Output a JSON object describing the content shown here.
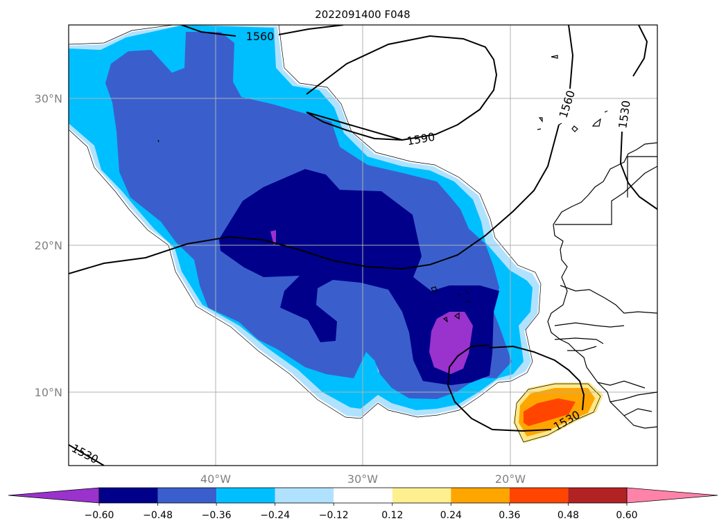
{
  "title": "2022091400 F048",
  "map": {
    "lat_ticks": [
      "30°N",
      "20°N",
      "10°N"
    ],
    "lon_ticks": [
      "40°W",
      "30°W",
      "20°W"
    ],
    "contour_labels": [
      "1560",
      "1590",
      "1560",
      "1530",
      "1530",
      "1530"
    ]
  },
  "colorbar": {
    "colors": [
      "#9a32cd",
      "#00008b",
      "#3a5fcd",
      "#00bfff",
      "#b0e2ff",
      "#ffffff",
      "#fff08f",
      "#ffa500",
      "#ff4500",
      "#b22222",
      "#ff83a8"
    ],
    "tick_labels": [
      "−0.60",
      "−0.48",
      "−0.36",
      "−0.24",
      "−0.12",
      "0.12",
      "0.24",
      "0.36",
      "0.48",
      "0.60"
    ]
  },
  "colors": {
    "purple": "#9a32cd",
    "navy": "#00008b",
    "royal": "#3a5fcd",
    "sky": "#00bfff",
    "pale": "#b0e2ff",
    "yellow": "#ffe88a",
    "orange": "#ffa500",
    "red": "#ff4500"
  }
}
